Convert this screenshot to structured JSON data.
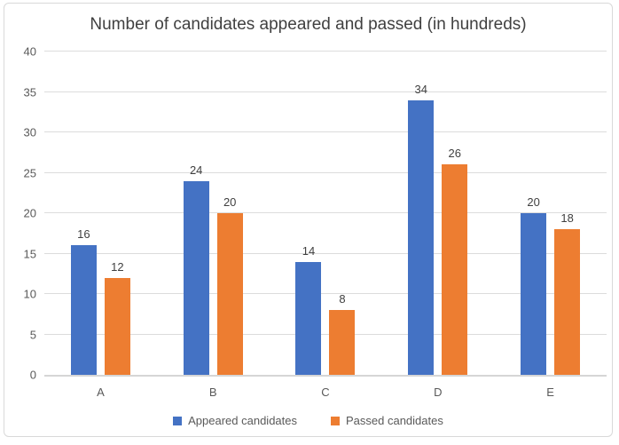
{
  "chart_data": {
    "type": "bar",
    "title": "Number of candidates appeared and passed (in hundreds)",
    "categories": [
      "A",
      "B",
      "C",
      "D",
      "E"
    ],
    "series": [
      {
        "name": "Appeared candidates",
        "key": "appeared",
        "color": "#4472C4",
        "values": [
          16,
          24,
          14,
          34,
          20
        ]
      },
      {
        "name": "Passed candidates",
        "key": "passed",
        "color": "#ED7D31",
        "values": [
          12,
          20,
          8,
          26,
          18
        ]
      }
    ],
    "ylim": [
      0,
      40
    ],
    "ytick_step": 5,
    "grid": true,
    "data_labels": true,
    "legend_position": "bottom",
    "xlabel": "",
    "ylabel": ""
  },
  "colors": {
    "appeared": "#4472C4",
    "passed": "#ED7D31",
    "gridline": "#DCDCDC",
    "axis_line": "#D6D6D6",
    "axis_text": "#595959",
    "title_text": "#404040",
    "frame_border": "#D9D9D9",
    "background": "#FFFFFF"
  }
}
